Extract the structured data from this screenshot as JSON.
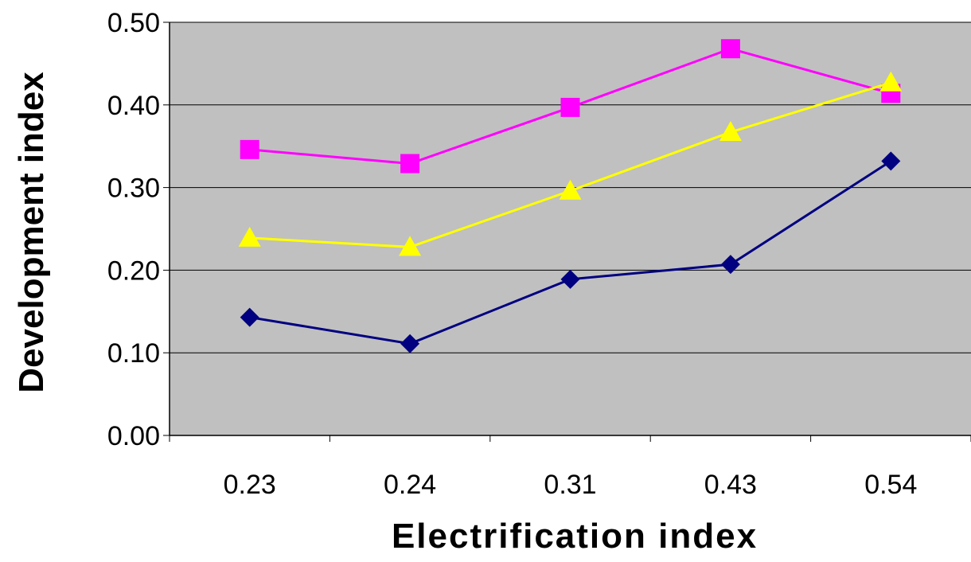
{
  "chart_data": {
    "type": "line",
    "categories": [
      "0.23",
      "0.24",
      "0.31",
      "0.43",
      "0.54"
    ],
    "xlabel": "Electrification index",
    "ylabel": "Development index",
    "ylim": [
      0,
      0.5
    ],
    "yticks": [
      "0.00",
      "0.10",
      "0.20",
      "0.30",
      "0.40",
      "0.50"
    ],
    "grid": true,
    "legend": "none",
    "plot_background": "#c0c0c0",
    "series": [
      {
        "color": "#ff00ff",
        "marker": "square",
        "values": [
          0.346,
          0.329,
          0.397,
          0.468,
          0.414
        ]
      },
      {
        "color": "#ffff00",
        "marker": "triangle",
        "values": [
          0.239,
          0.228,
          0.296,
          0.367,
          0.427
        ]
      },
      {
        "color": "#000080",
        "marker": "diamond",
        "values": [
          0.143,
          0.111,
          0.189,
          0.207,
          0.332
        ]
      }
    ]
  }
}
